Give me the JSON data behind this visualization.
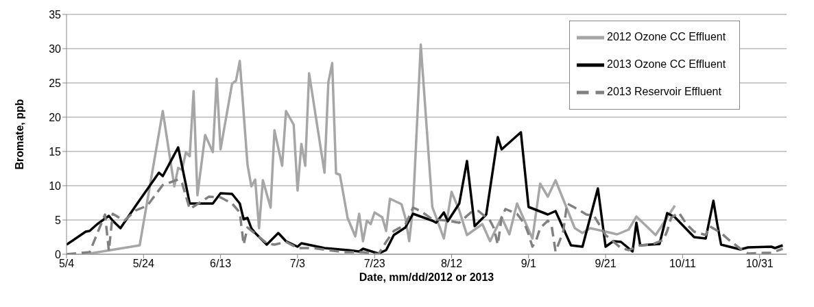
{
  "chart_data": {
    "type": "line",
    "xlabel": "Date, mm/dd/2012 or 2013",
    "ylabel": "Bromate, ppb",
    "xlim": [
      "--05-04",
      "--11-07"
    ],
    "xticks": [
      {
        "value": "--05-04",
        "label": "5/4"
      },
      {
        "value": "--05-24",
        "label": "5/24"
      },
      {
        "value": "--06-13",
        "label": "6/13"
      },
      {
        "value": "--07-03",
        "label": "7/3"
      },
      {
        "value": "--07-23",
        "label": "7/23"
      },
      {
        "value": "--08-12",
        "label": "8/12"
      },
      {
        "value": "--09-01",
        "label": "9/1"
      },
      {
        "value": "--09-21",
        "label": "9/21"
      },
      {
        "value": "--10-11",
        "label": "10/11"
      },
      {
        "value": "--10-31",
        "label": "10/31"
      }
    ],
    "ylim": [
      0,
      35
    ],
    "yticks": [
      0,
      5,
      10,
      15,
      20,
      25,
      30,
      35
    ],
    "grid": "y",
    "legend": "top right",
    "marker": "none",
    "series": [
      {
        "name": "2012 Ozone CC Effluent",
        "color": "#a6a6a6",
        "line_style": "solid",
        "x": [
          "--05-10",
          "--05-23",
          "--05-29",
          "--06-01",
          "--06-02",
          "--06-03",
          "--06-04",
          "--06-05",
          "--06-06",
          "--06-07",
          "--06-09",
          "--06-11",
          "--06-12",
          "--06-13",
          "--06-16",
          "--06-17",
          "--06-18",
          "--06-20",
          "--06-21",
          "--06-22",
          "--06-23",
          "--06-24",
          "--06-26",
          "--06-27",
          "--06-29",
          "--06-30",
          "--07-02",
          "--07-03",
          "--07-04",
          "--07-05",
          "--07-06",
          "--07-10",
          "--07-11",
          "--07-12",
          "--07-13",
          "--07-14",
          "--07-16",
          "--07-18",
          "--07-19",
          "--07-20",
          "--07-21",
          "--07-22",
          "--07-23",
          "--07-25",
          "--07-26",
          "--07-27",
          "--07-30",
          "--07-31",
          "--08-01",
          "--08-02",
          "--08-04",
          "--08-07",
          "--08-10",
          "--08-12",
          "--08-14",
          "--08-16",
          "--08-20",
          "--08-22",
          "--08-25",
          "--08-27",
          "--08-29",
          "--09-02",
          "--09-04",
          "--09-06",
          "--09-08",
          "--09-13",
          "--09-15",
          "--09-17",
          "--09-21",
          "--09-24",
          "--09-27",
          "--09-29",
          "--10-04",
          "--10-09"
        ],
        "values": [
          0.1,
          1.3,
          20.9,
          9.9,
          12.6,
          12.3,
          14.9,
          14.3,
          23.8,
          8.6,
          17.4,
          14.9,
          25.6,
          15.3,
          24.9,
          25.3,
          28.2,
          13.1,
          9.9,
          10.9,
          3.8,
          10.8,
          6.8,
          18.1,
          12.9,
          20.9,
          18.9,
          9.3,
          16.1,
          12.9,
          26.4,
          11.9,
          25.1,
          27.9,
          11.8,
          11.6,
          5.3,
          2.6,
          5.9,
          1.9,
          4.9,
          4.4,
          6.1,
          5.4,
          3.4,
          8.1,
          7.3,
          5.3,
          1.9,
          6.9,
          30.6,
          6.9,
          2.3,
          9.1,
          6.4,
          2.8,
          4.4,
          1.9,
          5.4,
          2.9,
          7.4,
          2.3,
          10.3,
          8.4,
          10.8,
          3.8,
          3.1,
          3.8,
          3.3,
          2.9,
          3.6,
          5.5,
          2.8,
          7.1
        ]
      },
      {
        "name": "2013 Ozone CC Effluent",
        "color": "#000000",
        "line_style": "solid",
        "x": [
          "--05-04",
          "--05-09",
          "--05-10",
          "--05-12",
          "--05-15",
          "--05-16",
          "--05-18",
          "--05-22",
          "--05-28",
          "--05-29",
          "--06-02",
          "--06-05",
          "--06-11",
          "--06-13",
          "--06-16",
          "--06-18",
          "--06-19",
          "--06-20",
          "--06-21",
          "--06-22",
          "--06-25",
          "--06-28",
          "--06-30",
          "--07-03",
          "--07-04",
          "--07-10",
          "--07-16",
          "--07-19",
          "--07-20",
          "--07-24",
          "--07-26",
          "--07-28",
          "--07-31",
          "--08-02",
          "--08-07",
          "--08-08",
          "--08-10",
          "--08-11",
          "--08-14",
          "--08-16",
          "--08-18",
          "--08-21",
          "--08-24",
          "--08-25",
          "--08-30",
          "--09-01",
          "--09-06",
          "--09-08",
          "--09-12",
          "--09-15",
          "--09-19",
          "--09-21",
          "--09-23",
          "--09-25",
          "--09-28",
          "--09-29",
          "--09-30",
          "--10-05",
          "--10-07",
          "--10-09",
          "--10-14",
          "--10-17",
          "--10-19",
          "--10-20",
          "--10-21",
          "--10-26",
          "--10-28",
          "--11-03",
          "--11-04",
          "--11-06"
        ],
        "values": [
          1.4,
          3.3,
          3.4,
          4.4,
          5.6,
          4.9,
          3.8,
          7.1,
          11.9,
          11.4,
          15.6,
          7.4,
          7.4,
          8.9,
          8.8,
          7.4,
          5.1,
          5.3,
          3.8,
          3.1,
          1.4,
          3.1,
          1.9,
          1.1,
          1.6,
          0.9,
          0.6,
          0.4,
          0.8,
          0.1,
          0.6,
          2.8,
          3.9,
          5.9,
          4.9,
          4.6,
          6.1,
          4.8,
          7.4,
          13.6,
          4.1,
          5.8,
          17.1,
          15.3,
          17.8,
          6.9,
          5.8,
          6.3,
          1.3,
          1.1,
          9.6,
          1.1,
          1.9,
          1.8,
          0.4,
          4.6,
          1.3,
          1.5,
          6.0,
          5.4,
          2.5,
          2.3,
          7.8,
          4.4,
          1.4,
          0.7,
          1.0,
          1.1,
          0.9,
          1.3
        ]
      },
      {
        "name": "2013 Reservoir Effluent",
        "color": "#808080",
        "line_style": "dashed",
        "x": [
          "--05-04",
          "--05-10",
          "--05-14",
          "--05-15",
          "--05-16",
          "--05-19",
          "--05-22",
          "--05-25",
          "--05-29",
          "--06-02",
          "--06-03",
          "--06-05",
          "--06-10",
          "--06-13",
          "--06-16",
          "--06-18",
          "--06-19",
          "--06-20",
          "--06-25",
          "--06-27",
          "--06-30",
          "--07-03",
          "--07-07",
          "--07-15",
          "--07-20",
          "--07-24",
          "--07-26",
          "--07-28",
          "--07-31",
          "--08-02",
          "--08-04",
          "--08-07",
          "--08-11",
          "--08-14",
          "--08-17",
          "--08-19",
          "--08-22",
          "--08-23",
          "--08-24",
          "--08-25",
          "--08-26",
          "--08-29",
          "--08-31",
          "--09-01",
          "--09-02",
          "--09-03",
          "--09-04",
          "--09-06",
          "--09-07",
          "--09-08",
          "--09-10",
          "--09-11",
          "--09-13",
          "--09-16",
          "--09-18",
          "--09-21",
          "--09-25",
          "--09-27",
          "--09-30",
          "--10-03",
          "--10-06",
          "--10-07",
          "--10-08",
          "--10-10",
          "--10-12",
          "--10-14",
          "--10-17",
          "--10-18",
          "--10-21",
          "--10-23",
          "--10-26",
          "--10-28",
          "--11-01",
          "--11-03",
          "--11-06"
        ],
        "values": [
          0,
          0.3,
          5.8,
          0.5,
          5.9,
          4.9,
          6.4,
          7.1,
          10.1,
          10.9,
          10.4,
          6.6,
          8.4,
          8.3,
          7.4,
          6.1,
          1.4,
          3.9,
          1.6,
          1.4,
          1.8,
          0.9,
          0.9,
          0.3,
          0.3,
          0,
          1.8,
          3.4,
          4.3,
          6.8,
          6.3,
          5.1,
          4.9,
          4.6,
          6.1,
          6.3,
          4.9,
          3.8,
          1.4,
          5.4,
          6.6,
          5.9,
          4.4,
          2.9,
          1.1,
          2.1,
          3.8,
          4.9,
          4.1,
          0.4,
          3.3,
          7.4,
          6.8,
          5.8,
          5.6,
          2.8,
          0.9,
          0.6,
          1.3,
          1.4,
          2.1,
          3.4,
          5.3,
          6.1,
          4.4,
          3.3,
          2.8,
          4.1,
          3.1,
          2.1,
          0.8,
          0.1,
          0.2,
          0.2,
          0.8
        ]
      }
    ]
  }
}
